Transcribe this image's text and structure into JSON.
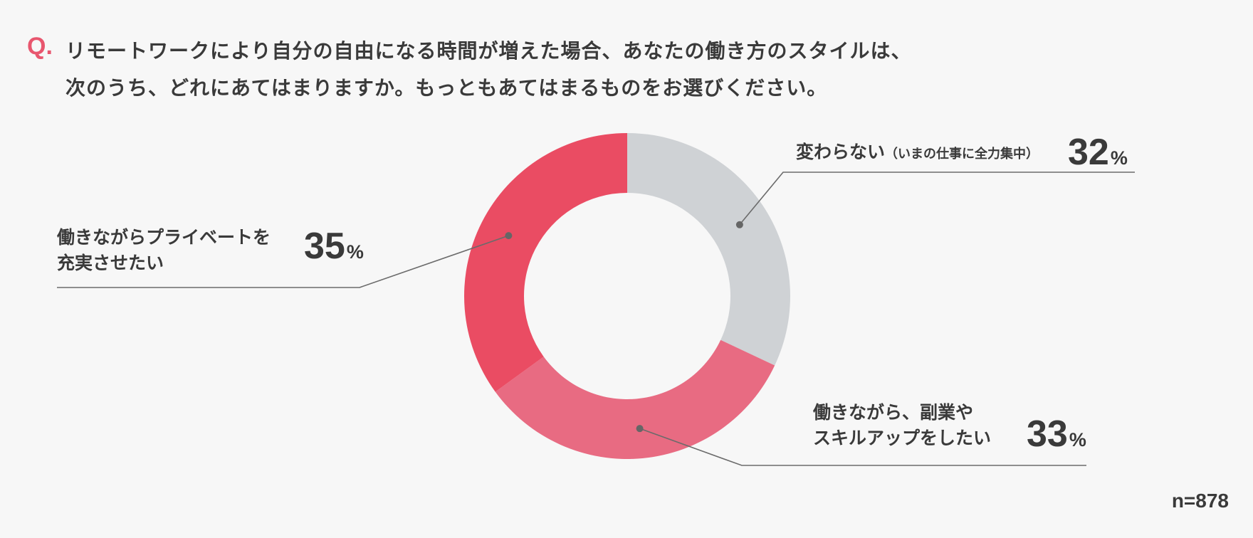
{
  "question": {
    "marker": "Q.",
    "line1": "リモートワークにより自分の自由になる時間が増えた場合、あなたの働き方のスタイルは、",
    "line2": "次のうち、どれにあてはまりますか。もっともあてはまるものをお選びください。"
  },
  "chart_data": {
    "type": "pie",
    "variant": "donut",
    "categories": [
      "変わらない（いまの仕事に全力集中）",
      "働きながら、副業やスキルアップをしたい",
      "働きながらプライベートを充実させたい"
    ],
    "values": [
      32,
      33,
      35
    ],
    "unit": "%",
    "colors": [
      "#cfd2d5",
      "#e86b82",
      "#ea4c63"
    ]
  },
  "labels": {
    "a": {
      "main": "変わらない",
      "sub": "（いまの仕事に全力集中）",
      "value": "32",
      "unit": "%"
    },
    "b": {
      "line1": "働きながら、副業や",
      "line2": "スキルアップをしたい",
      "value": "33",
      "unit": "%"
    },
    "c": {
      "line1": "働きながらプライベートを",
      "line2": "充実させたい",
      "value": "35",
      "unit": "%"
    }
  },
  "sample": "n=878"
}
